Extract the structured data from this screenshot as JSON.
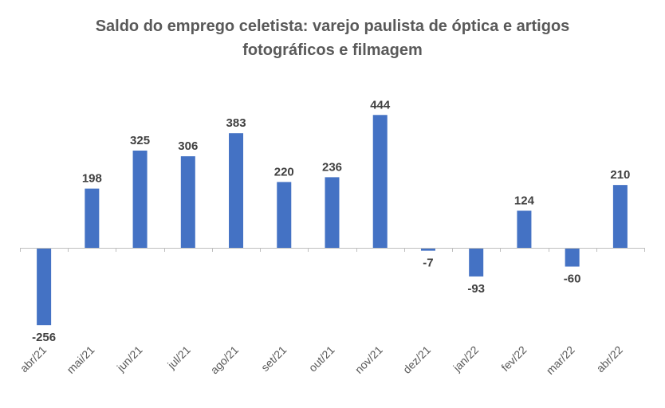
{
  "chart_data": {
    "type": "bar",
    "title_lines": [
      "Saldo do emprego celetista: varejo paulista de óptica e artigos",
      "fotográficos e filmagem"
    ],
    "categories": [
      "abr/21",
      "mai/21",
      "jun/21",
      "jul/21",
      "ago/21",
      "set/21",
      "out/21",
      "nov/21",
      "dez/21",
      "jan/22",
      "fev/22",
      "mar/22",
      "abr/22"
    ],
    "values": [
      -256,
      198,
      325,
      306,
      383,
      220,
      236,
      444,
      -7,
      -93,
      124,
      -60,
      210
    ],
    "value_labels": [
      "-256",
      "198",
      "325",
      "306",
      "383",
      "220",
      "236",
      "444",
      "-7",
      "-93",
      "124",
      "-60",
      "210"
    ],
    "ylim": [
      -300,
      500
    ],
    "grid": false,
    "legend": "none",
    "bar_color": "#4472C4"
  }
}
